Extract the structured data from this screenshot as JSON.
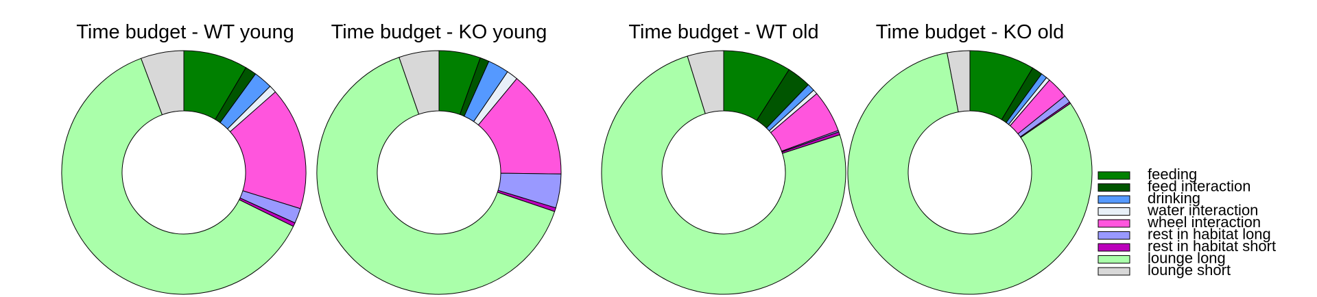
{
  "chart_data": [
    {
      "type": "pie",
      "title": "Time budget - WT young",
      "categories": [
        "feeding",
        "feed interaction",
        "drinking",
        "water interaction",
        "wheel interaction",
        "rest in habitat long",
        "rest in habitat short",
        "lounge long",
        "lounge short"
      ],
      "values": [
        8.5,
        1.5,
        2.5,
        1.0,
        16.3,
        2.0,
        0.5,
        62.0,
        5.7
      ]
    },
    {
      "type": "pie",
      "title": "Time budget - KO young",
      "categories": [
        "feeding",
        "feed interaction",
        "drinking",
        "water interaction",
        "wheel interaction",
        "rest in habitat long",
        "rest in habitat short",
        "lounge long",
        "lounge short"
      ],
      "values": [
        5.5,
        1.2,
        2.8,
        1.5,
        14.2,
        4.5,
        0.5,
        64.5,
        5.3
      ]
    },
    {
      "type": "pie",
      "title": "Time budget - WT old",
      "categories": [
        "feeding",
        "feed interaction",
        "drinking",
        "water interaction",
        "wheel interaction",
        "rest in habitat long",
        "rest in habitat short",
        "lounge long",
        "lounge short"
      ],
      "values": [
        9.0,
        3.2,
        1.0,
        0.6,
        5.6,
        0.2,
        0.4,
        75.2,
        4.8
      ]
    },
    {
      "type": "pie",
      "title": "Time budget - KO old",
      "categories": [
        "feeding",
        "feed interaction",
        "drinking",
        "water interaction",
        "wheel interaction",
        "rest in habitat long",
        "rest in habitat short",
        "lounge long",
        "lounge short"
      ],
      "values": [
        8.6,
        1.4,
        0.8,
        0.5,
        2.9,
        1.0,
        0.2,
        81.6,
        3.0
      ]
    }
  ],
  "legend": {
    "placement": "right",
    "items": [
      {
        "label": "feeding",
        "color": "#008000"
      },
      {
        "label": "feed interaction",
        "color": "#005500"
      },
      {
        "label": "drinking",
        "color": "#5599ff"
      },
      {
        "label": "water interaction",
        "color": "#e8f0f8"
      },
      {
        "label": "wheel interaction",
        "color": "#ff55dd"
      },
      {
        "label": "rest in habitat long",
        "color": "#9999ff"
      },
      {
        "label": "rest in habitat short",
        "color": "#bb00bb"
      },
      {
        "label": "lounge long",
        "color": "#aaffaa"
      },
      {
        "label": "lounge short",
        "color": "#d8d8d8"
      }
    ]
  }
}
